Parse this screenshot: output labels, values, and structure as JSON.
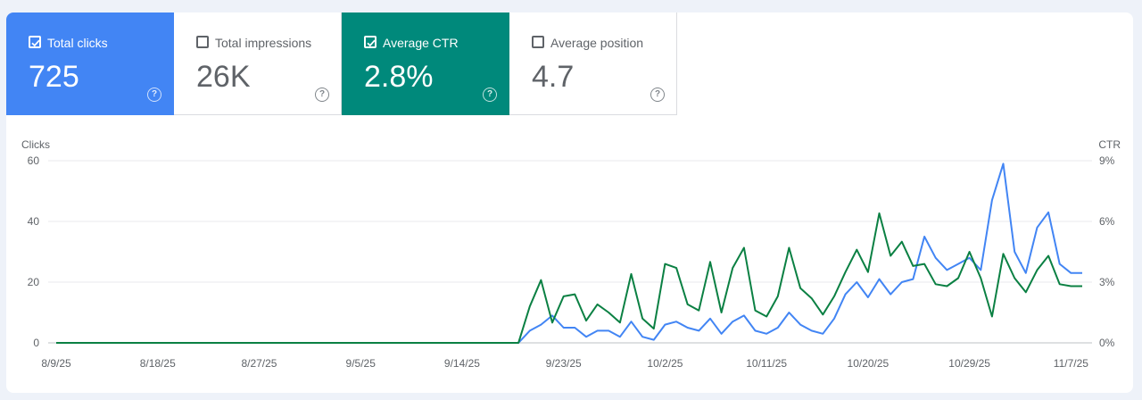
{
  "metrics": [
    {
      "label": "Total clicks",
      "value": "725",
      "checked": true,
      "color": "#4285f4"
    },
    {
      "label": "Total impressions",
      "value": "26K",
      "checked": false,
      "color": "#5e35b1"
    },
    {
      "label": "Average CTR",
      "value": "2.8%",
      "checked": true,
      "color": "#00897b"
    },
    {
      "label": "Average position",
      "value": "4.7",
      "checked": false,
      "color": "#e8710a"
    }
  ],
  "help_glyph": "?",
  "chart_data": {
    "type": "line",
    "left_axis_label": "Clicks",
    "right_axis_label": "CTR",
    "left_ylim": [
      0,
      60
    ],
    "right_ylim": [
      0,
      9
    ],
    "left_ticks": [
      "0",
      "20",
      "40",
      "60"
    ],
    "right_ticks": [
      "0%",
      "3%",
      "6%",
      "9%"
    ],
    "x_ticks": [
      "8/9/25",
      "8/18/25",
      "8/27/25",
      "9/5/25",
      "9/14/25",
      "9/23/25",
      "10/2/25",
      "10/11/25",
      "10/20/25",
      "10/29/25",
      "11/7/25"
    ],
    "x_tick_index": [
      0,
      9,
      18,
      27,
      36,
      45,
      54,
      63,
      72,
      81,
      90
    ],
    "grid": true,
    "n_days": 92,
    "series": [
      {
        "name": "Clicks",
        "axis": "left",
        "color": "#4285f4",
        "start_index": 40,
        "values": [
          0,
          0,
          4,
          6,
          9,
          5,
          5,
          2,
          4,
          4,
          2,
          7,
          2,
          1,
          6,
          7,
          5,
          4,
          8,
          3,
          7,
          9,
          4,
          3,
          5,
          10,
          6,
          4,
          3,
          8,
          16,
          20,
          15,
          21,
          16,
          20,
          21,
          35,
          28,
          24,
          26,
          28,
          24,
          47,
          59,
          30,
          23,
          38,
          43,
          26,
          23
        ]
      },
      {
        "name": "CTR",
        "axis": "right",
        "color": "#0b8043",
        "start_index": 40,
        "values": [
          0,
          0,
          1.8,
          3.1,
          1.0,
          2.3,
          2.4,
          1.1,
          1.9,
          1.5,
          1.0,
          3.4,
          1.2,
          0.7,
          3.9,
          3.7,
          1.9,
          1.6,
          4.0,
          1.5,
          3.7,
          4.7,
          1.6,
          1.3,
          2.3,
          4.7,
          2.7,
          2.2,
          1.4,
          2.3,
          3.5,
          4.6,
          3.5,
          6.4,
          4.3,
          5.0,
          3.8,
          3.9,
          2.9,
          2.8,
          3.2,
          4.5,
          3.2,
          1.3,
          4.4,
          3.2,
          2.5,
          3.6,
          4.3,
          2.9,
          2.8
        ]
      }
    ]
  }
}
